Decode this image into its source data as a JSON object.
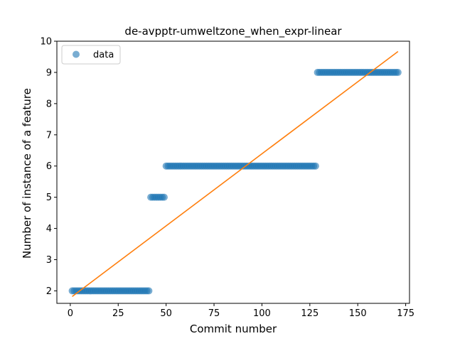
{
  "chart_data": {
    "type": "scatter",
    "title": "de-avpptr-umweltzone_when_expr-linear",
    "xlabel": "Commit number",
    "ylabel": "Number of instance of a feature",
    "xlim": [
      -7,
      177
    ],
    "ylim": [
      1.6,
      10.0
    ],
    "xticks": [
      0,
      25,
      50,
      75,
      100,
      125,
      150,
      175
    ],
    "yticks": [
      2,
      3,
      4,
      5,
      6,
      7,
      8,
      9,
      10
    ],
    "grid": false,
    "legend": {
      "position": "top-left",
      "entries": [
        "data"
      ]
    },
    "colors": {
      "data": "#1f77b4",
      "fit": "#ff7f0e"
    },
    "series": [
      {
        "name": "data",
        "kind": "points",
        "segments": [
          {
            "x_start": 1,
            "x_end": 41,
            "y": 2
          },
          {
            "x_start": 42,
            "x_end": 49,
            "y": 5
          },
          {
            "x_start": 50,
            "x_end": 128,
            "y": 6
          },
          {
            "x_start": 129,
            "x_end": 171,
            "y": 9
          }
        ]
      },
      {
        "kind": "line",
        "x": [
          1,
          171
        ],
        "y": [
          1.82,
          9.67
        ]
      }
    ]
  }
}
